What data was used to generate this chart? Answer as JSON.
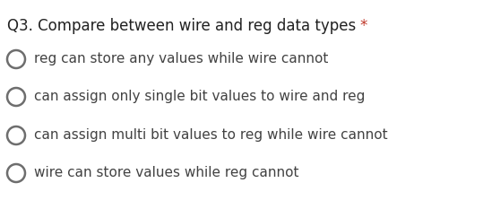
{
  "background_color": "#ffffff",
  "question_prefix": "Q3. Compare between wire and reg data types ",
  "asterisk": "*",
  "question_color": "#212121",
  "asterisk_color": "#c0392b",
  "options": [
    "reg can store any values while wire cannot",
    "can assign only single bit values to wire and reg",
    "can assign multi bit values to reg while wire cannot",
    "wire can store values while reg cannot"
  ],
  "option_color": "#424242",
  "circle_edge_color": "#6e6e6e",
  "circle_face_color": "#ffffff",
  "question_fontsize": 12.0,
  "option_fontsize": 11.0,
  "fig_width": 5.39,
  "fig_height": 2.33,
  "dpi": 100
}
